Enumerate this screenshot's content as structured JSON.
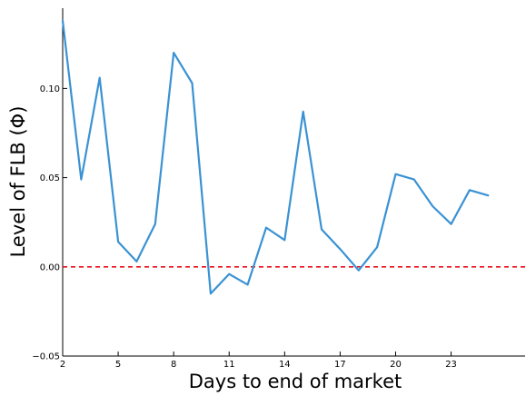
{
  "chart_data": {
    "type": "line",
    "xlabel": "Days to end of market",
    "ylabel": "Level of FLB (Φ)",
    "xlim": [
      2,
      27
    ],
    "ylim": [
      -0.05,
      0.145
    ],
    "x_ticks": [
      2,
      5,
      8,
      11,
      14,
      17,
      20,
      23
    ],
    "y_ticks": [
      -0.05,
      0.0,
      0.05,
      0.1
    ],
    "y_tick_labels": [
      "−0.05",
      "0.00",
      "0.05",
      "0.10"
    ],
    "grid": false,
    "legend": "none",
    "series": [
      {
        "color": "#3a92d4",
        "x": [
          2,
          3,
          4,
          5,
          6,
          7,
          8,
          9,
          10,
          11,
          12,
          13,
          14,
          15,
          16,
          17,
          18,
          19,
          20,
          21,
          22,
          23,
          24,
          25
        ],
        "y": [
          0.138,
          0.049,
          0.106,
          0.014,
          0.003,
          0.024,
          0.12,
          0.103,
          -0.015,
          -0.004,
          -0.01,
          0.022,
          0.015,
          0.087,
          0.021,
          0.01,
          -0.002,
          0.011,
          0.052,
          0.049,
          0.034,
          0.024,
          0.043,
          0.04
        ]
      }
    ],
    "reference_lines": [
      {
        "axis": "y",
        "value": 0.0,
        "color": "#e8101a",
        "style": "dashed"
      }
    ]
  }
}
